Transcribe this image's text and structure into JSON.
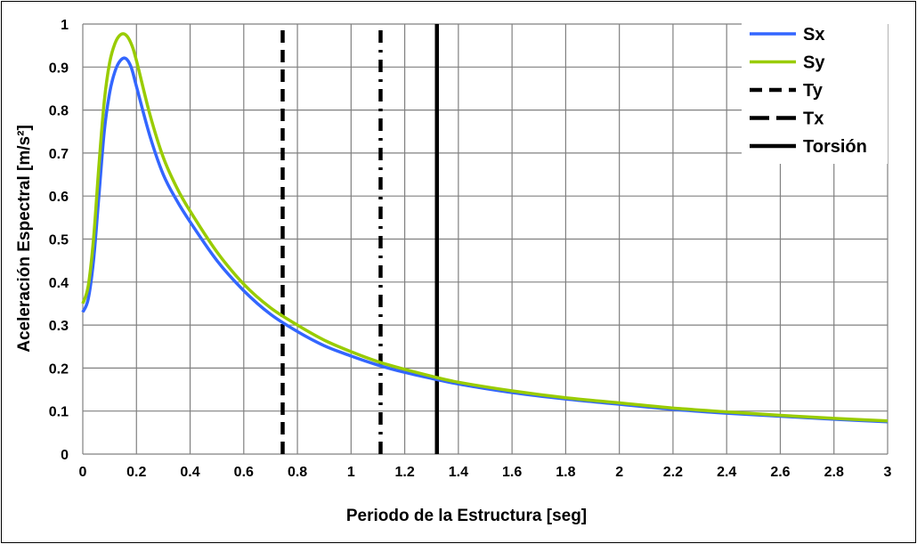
{
  "chart_data": {
    "type": "line",
    "xlabel": "Periodo  de la  Estructura  [seg]",
    "ylabel": "Aceleración  Espectral  [m/s²]",
    "xlim": [
      0,
      3
    ],
    "ylim": [
      0,
      1
    ],
    "x_ticks": [
      "0",
      "0.2",
      "0.4",
      "0.6",
      "0.8",
      "1",
      "1.2",
      "1.4",
      "1.6",
      "1.8",
      "2",
      "2.2",
      "2.4",
      "2.6",
      "2.8",
      "3"
    ],
    "y_ticks": [
      "0",
      "0.1",
      "0.2",
      "0.3",
      "0.4",
      "0.5",
      "0.6",
      "0.7",
      "0.8",
      "0.9",
      "1"
    ],
    "grid": true,
    "legend_position": "top-right",
    "series": [
      {
        "name": "Sx",
        "color": "#3366ff",
        "x": [
          0,
          0.02,
          0.04,
          0.06,
          0.08,
          0.1,
          0.12,
          0.14,
          0.16,
          0.18,
          0.2,
          0.25,
          0.3,
          0.35,
          0.4,
          0.5,
          0.6,
          0.7,
          0.8,
          0.9,
          1.0,
          1.1,
          1.2,
          1.3,
          1.4,
          1.6,
          1.8,
          2.0,
          2.2,
          2.4,
          2.6,
          2.8,
          3.0
        ],
        "y": [
          0.33,
          0.36,
          0.45,
          0.6,
          0.75,
          0.84,
          0.89,
          0.915,
          0.92,
          0.9,
          0.855,
          0.74,
          0.65,
          0.59,
          0.54,
          0.45,
          0.38,
          0.325,
          0.285,
          0.252,
          0.228,
          0.207,
          0.19,
          0.176,
          0.163,
          0.143,
          0.128,
          0.116,
          0.104,
          0.095,
          0.088,
          0.081,
          0.075
        ]
      },
      {
        "name": "Sy",
        "color": "#99cc00",
        "x": [
          0,
          0.02,
          0.04,
          0.06,
          0.08,
          0.1,
          0.12,
          0.14,
          0.16,
          0.18,
          0.2,
          0.25,
          0.3,
          0.35,
          0.4,
          0.5,
          0.6,
          0.7,
          0.8,
          0.9,
          1.0,
          1.1,
          1.2,
          1.3,
          1.4,
          1.6,
          1.8,
          2.0,
          2.2,
          2.4,
          2.6,
          2.8,
          3.0
        ],
        "y": [
          0.35,
          0.39,
          0.5,
          0.67,
          0.82,
          0.91,
          0.955,
          0.975,
          0.975,
          0.955,
          0.915,
          0.79,
          0.69,
          0.62,
          0.565,
          0.47,
          0.395,
          0.34,
          0.3,
          0.265,
          0.238,
          0.215,
          0.197,
          0.181,
          0.167,
          0.147,
          0.131,
          0.119,
          0.107,
          0.098,
          0.09,
          0.083,
          0.077
        ]
      }
    ],
    "vertical_lines": [
      {
        "name": "Ty",
        "x": 0.745,
        "style": "dash",
        "color": "#000000"
      },
      {
        "name": "Tx",
        "x": 1.11,
        "style": "dashdot",
        "color": "#000000"
      },
      {
        "name": "Torsión",
        "x": 1.32,
        "style": "solid",
        "color": "#000000"
      }
    ],
    "legend": [
      "Sx",
      "Sy",
      "Ty",
      "Tx",
      "Torsión"
    ]
  }
}
